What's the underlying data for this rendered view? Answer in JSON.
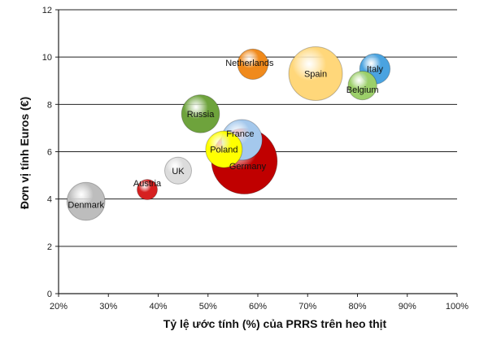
{
  "chart_data": {
    "type": "bubble",
    "xlabel": "Tỷ lệ ước tính (%) của PRRS trên heo thịt",
    "ylabel": "Đơn vị tính Euros (€)",
    "xlim": [
      20,
      100
    ],
    "ylim": [
      0,
      12
    ],
    "x_ticks": [
      20,
      30,
      40,
      50,
      60,
      70,
      80,
      90,
      100
    ],
    "x_tick_labels": [
      "20%",
      "30%",
      "40%",
      "50%",
      "60%",
      "70%",
      "80%",
      "90%",
      "100%"
    ],
    "y_ticks": [
      0,
      2,
      4,
      6,
      8,
      10,
      12
    ],
    "y_tick_labels": [
      "0",
      "2",
      "4",
      "6",
      "8",
      "10",
      "12"
    ],
    "grid": "horizontal",
    "legend": "none",
    "points": [
      {
        "label": "Denmark",
        "x": 25.5,
        "y": 3.9,
        "size": 7,
        "color": "#bdbdbd"
      },
      {
        "label": "Austria",
        "x": 37.8,
        "y": 4.4,
        "size": 2,
        "color": "#d62020"
      },
      {
        "label": "UK",
        "x": 44,
        "y": 5.2,
        "size": 3.5,
        "color": "#dcdcdc"
      },
      {
        "label": "Russia",
        "x": 48.5,
        "y": 7.6,
        "size": 7,
        "color": "#6ea33c"
      },
      {
        "label": "Germany",
        "x": 57.3,
        "y": 5.6,
        "size": 21,
        "color": "#c00000"
      },
      {
        "label": "France",
        "x": 56.8,
        "y": 6.5,
        "size": 8,
        "color": "#a4c8ec"
      },
      {
        "label": "Poland",
        "x": 53.2,
        "y": 6.1,
        "size": 6.5,
        "color": "#ffff00"
      },
      {
        "label": "Netherlands",
        "x": 59,
        "y": 9.7,
        "size": 4.5,
        "color": "#f08a1c"
      },
      {
        "label": "Spain",
        "x": 71.6,
        "y": 9.3,
        "size": 14,
        "color": "#ffd77a"
      },
      {
        "label": "Italy",
        "x": 83.5,
        "y": 9.5,
        "size": 4.5,
        "color": "#4aa3e0"
      },
      {
        "label": "Belgium",
        "x": 81,
        "y": 8.8,
        "size": 4,
        "color": "#9ccf6a"
      }
    ]
  }
}
